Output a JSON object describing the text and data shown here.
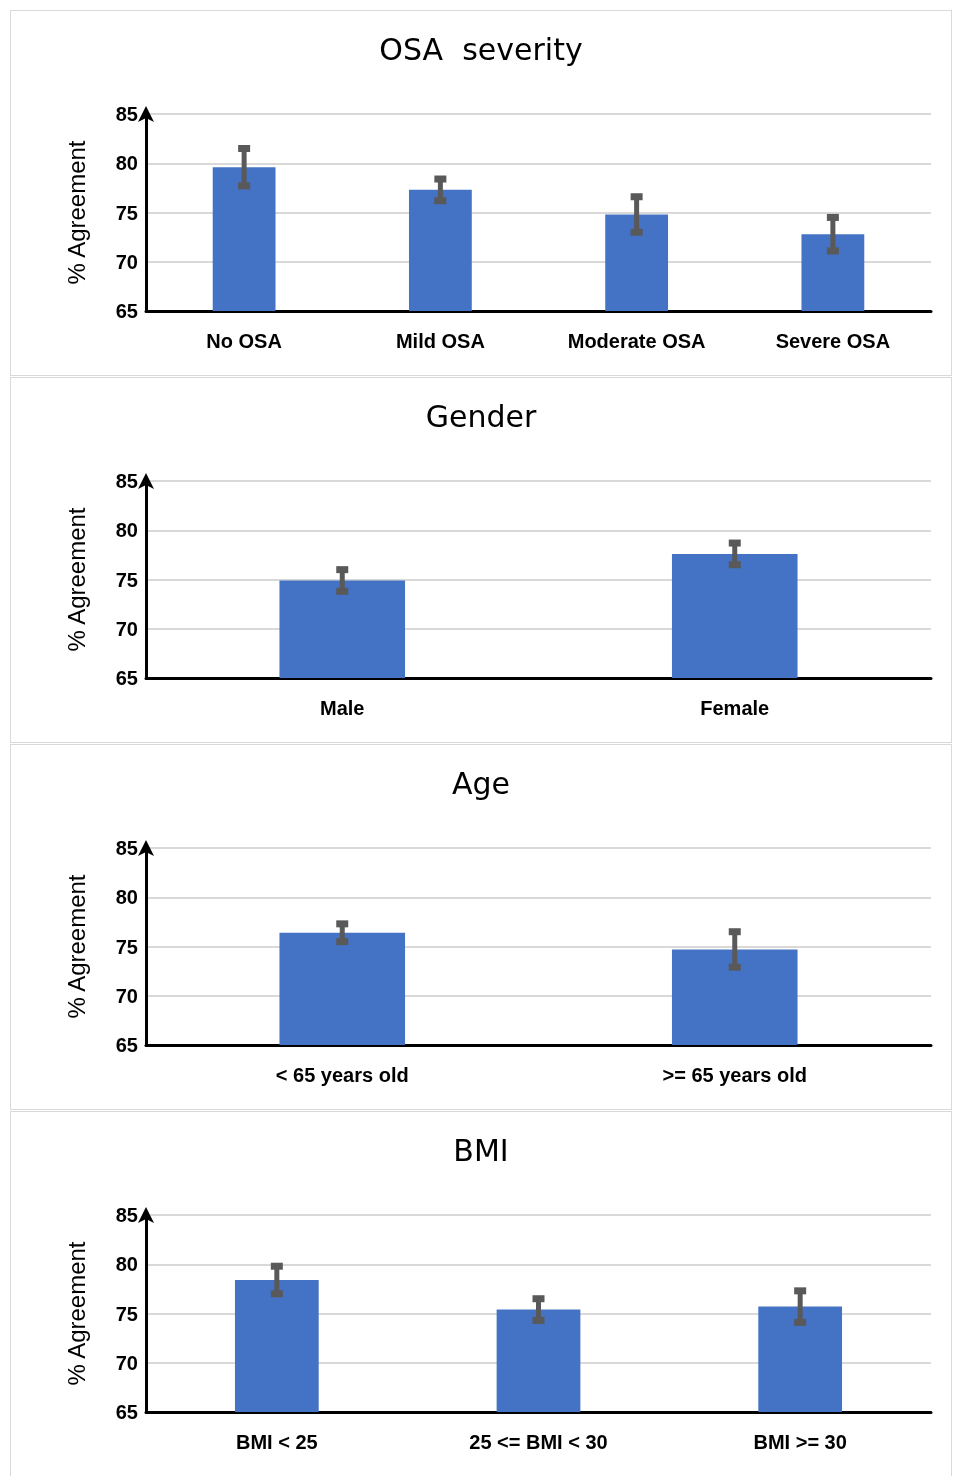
{
  "chart_data": [
    {
      "type": "bar",
      "title": "OSA  severity",
      "ylabel": "% Agreement",
      "categories": [
        "No OSA",
        "Mild OSA",
        "Moderate OSA",
        "Severe OSA"
      ],
      "values": [
        79.6,
        77.3,
        74.8,
        72.8
      ],
      "errors": [
        1.9,
        1.1,
        1.8,
        1.7
      ],
      "color": "#4472c4",
      "ylim": [
        65,
        85
      ],
      "yticks": [
        65,
        70,
        75,
        80,
        85
      ],
      "grid": "y"
    },
    {
      "type": "bar",
      "title": "Gender",
      "ylabel": "% Agreement",
      "categories": [
        "Male",
        "Female"
      ],
      "values": [
        74.9,
        77.6
      ],
      "errors": [
        1.1,
        1.1
      ],
      "color": "#4472c4",
      "ylim": [
        65,
        85
      ],
      "yticks": [
        65,
        70,
        75,
        80,
        85
      ],
      "grid": "y"
    },
    {
      "type": "bar",
      "title": "Age",
      "ylabel": "% Agreement",
      "categories": [
        "< 65 years old",
        ">= 65 years old"
      ],
      "values": [
        76.4,
        74.7
      ],
      "errors": [
        0.9,
        1.8
      ],
      "color": "#4472c4",
      "ylim": [
        65,
        85
      ],
      "yticks": [
        65,
        70,
        75,
        80,
        85
      ],
      "grid": "y"
    },
    {
      "type": "bar",
      "title": "BMI",
      "ylabel": "% Agreement",
      "categories": [
        "BMI < 25",
        "25 <= BMI < 30",
        "BMI >= 30"
      ],
      "values": [
        78.4,
        75.4,
        75.7
      ],
      "errors": [
        1.4,
        1.1,
        1.6
      ],
      "color": "#4472c4",
      "ylim": [
        65,
        85
      ],
      "yticks": [
        65,
        70,
        75,
        80,
        85
      ],
      "grid": "y"
    }
  ]
}
